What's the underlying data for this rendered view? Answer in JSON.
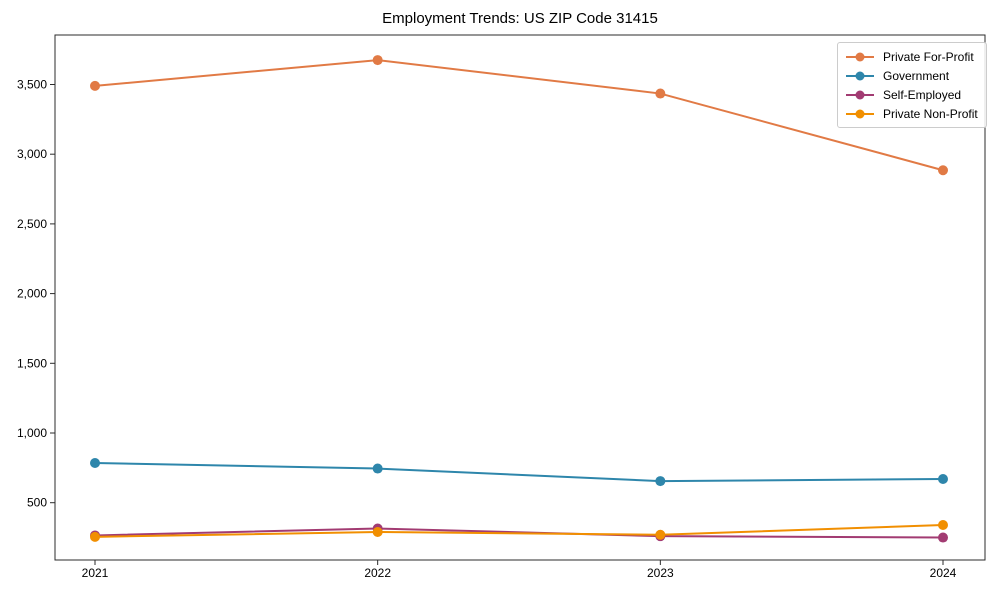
{
  "chart_data": {
    "type": "line",
    "title": "Employment Trends: US ZIP Code 31415",
    "xlabel": "",
    "ylabel": "",
    "x_categories": [
      "2021",
      "2022",
      "2023",
      "2024"
    ],
    "yticks": [
      500,
      1000,
      1500,
      2000,
      2500,
      3000,
      3500
    ],
    "ytick_labels": [
      "500",
      "1,000",
      "1,500",
      "2,000",
      "2,500",
      "3,000",
      "3,500"
    ],
    "ylim": [
      89,
      3855
    ],
    "grid": false,
    "legend_position": "upper right",
    "series": [
      {
        "name": "Private For-Profit",
        "color": "#E17A45",
        "values": [
          3490,
          3675,
          3435,
          2885
        ]
      },
      {
        "name": "Government",
        "color": "#2E86AB",
        "values": [
          785,
          745,
          655,
          670
        ]
      },
      {
        "name": "Self-Employed",
        "color": "#A23B72",
        "values": [
          265,
          315,
          260,
          250
        ]
      },
      {
        "name": "Private Non-Profit",
        "color": "#F18F01",
        "values": [
          255,
          290,
          270,
          340
        ]
      }
    ]
  },
  "figure": {
    "background_color": "#ffffff",
    "spine_color": "#2b2b2b"
  }
}
